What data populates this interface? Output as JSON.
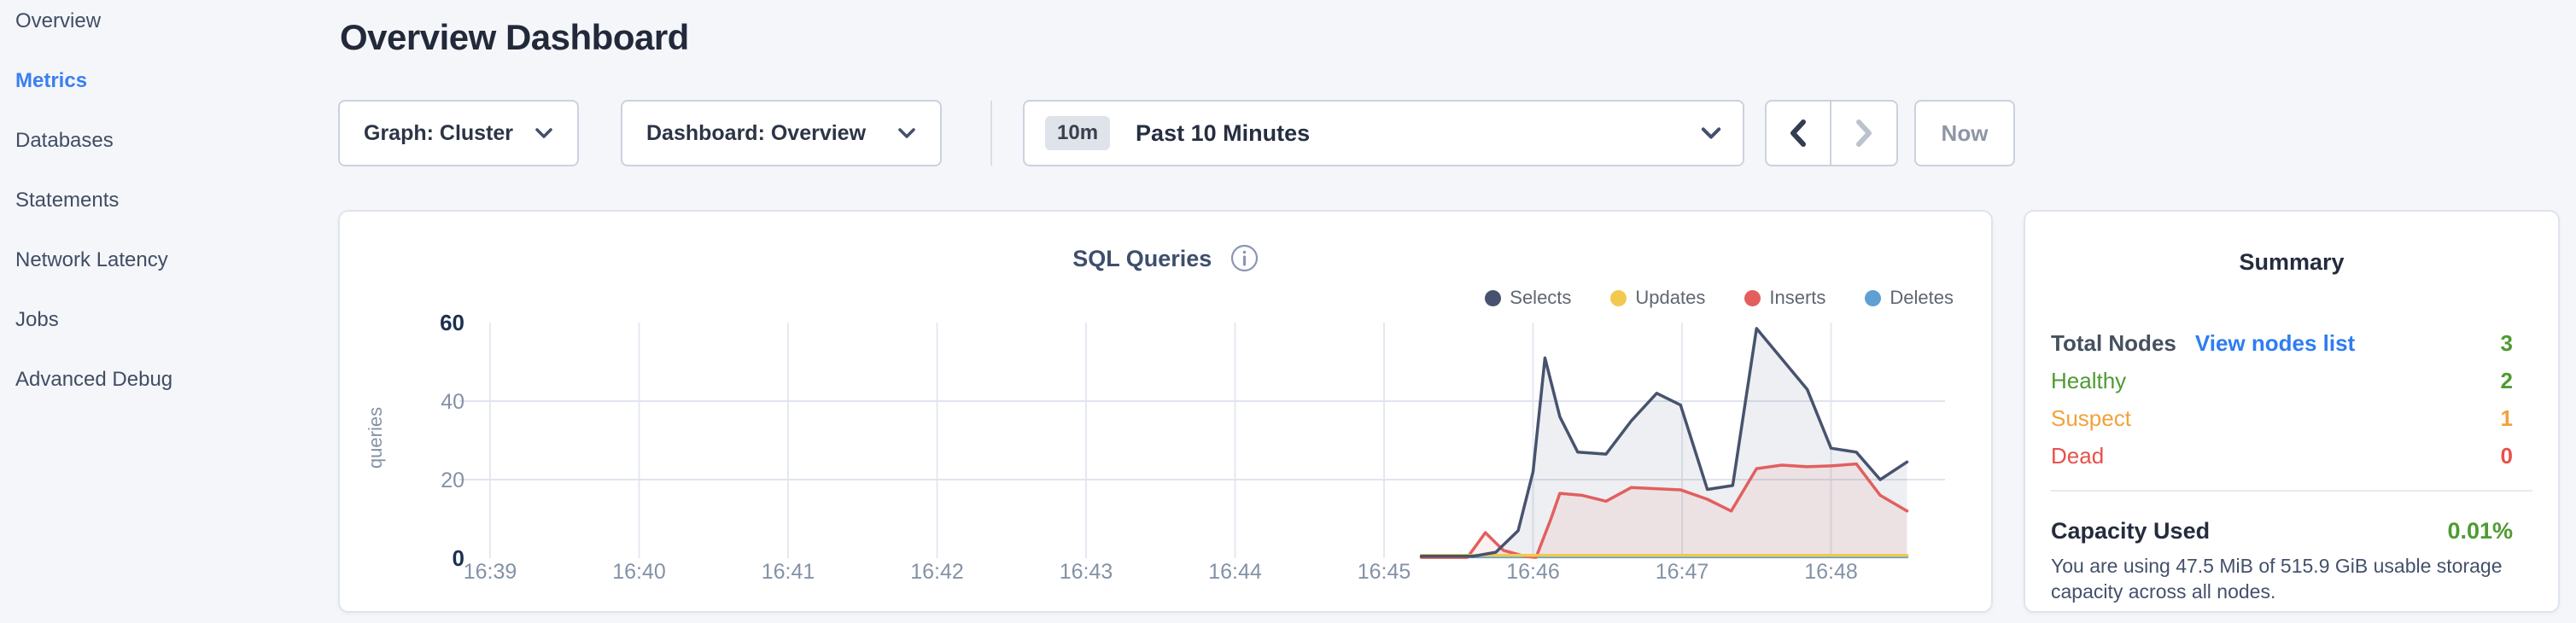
{
  "sidebar": {
    "items": [
      {
        "label": "Overview",
        "active": false
      },
      {
        "label": "Metrics",
        "active": true
      },
      {
        "label": "Databases",
        "active": false
      },
      {
        "label": "Statements",
        "active": false
      },
      {
        "label": "Network Latency",
        "active": false
      },
      {
        "label": "Jobs",
        "active": false
      },
      {
        "label": "Advanced Debug",
        "active": false
      }
    ]
  },
  "header": {
    "title": "Overview Dashboard"
  },
  "controls": {
    "graph_dropdown": "Graph: Cluster",
    "dashboard_dropdown": "Dashboard: Overview",
    "time_picker": {
      "badge": "10m",
      "label": "Past 10 Minutes"
    },
    "now_button": "Now"
  },
  "chart_data": {
    "type": "area",
    "title": "SQL Queries",
    "ylabel": "queries",
    "x_unit": "minutes after 16:39",
    "x_axis": {
      "tick_labels": [
        "16:39",
        "16:40",
        "16:41",
        "16:42",
        "16:43",
        "16:44",
        "16:45",
        "16:46",
        "16:47",
        "16:48"
      ],
      "minutes_per_tick": 1
    },
    "y_axis": {
      "ticks": [
        0,
        20,
        40,
        60
      ],
      "range": [
        0,
        60
      ]
    },
    "grid": "on",
    "legend_position": "top-right",
    "series": [
      {
        "name": "Selects",
        "color": "#47536e",
        "fill": "rgba(71,83,110,0.09)",
        "points": [
          [
            6.25,
            0.5
          ],
          [
            6.6,
            0.5
          ],
          [
            6.75,
            1.5
          ],
          [
            6.9,
            7
          ],
          [
            7.0,
            22
          ],
          [
            7.08,
            51
          ],
          [
            7.18,
            36
          ],
          [
            7.3,
            27
          ],
          [
            7.49,
            26.5
          ],
          [
            7.66,
            35
          ],
          [
            7.83,
            42
          ],
          [
            7.99,
            39
          ],
          [
            8.17,
            17.5
          ],
          [
            8.34,
            18.5
          ],
          [
            8.5,
            58.5
          ],
          [
            8.84,
            43
          ],
          [
            9.0,
            28
          ],
          [
            9.17,
            27
          ],
          [
            9.33,
            20
          ],
          [
            9.51,
            24.5
          ]
        ]
      },
      {
        "name": "Updates",
        "color": "#f2c94c",
        "fill": "none",
        "points": [
          [
            6.25,
            0.7
          ],
          [
            9.51,
            0.7
          ]
        ]
      },
      {
        "name": "Inserts",
        "color": "#e25f5e",
        "fill": "rgba(226,95,94,0.09)",
        "points": [
          [
            6.25,
            0.2
          ],
          [
            6.56,
            0.2
          ],
          [
            6.68,
            6.5
          ],
          [
            6.8,
            2
          ],
          [
            6.94,
            0.5
          ],
          [
            7.02,
            0.2
          ],
          [
            7.12,
            10
          ],
          [
            7.18,
            16.5
          ],
          [
            7.33,
            16
          ],
          [
            7.49,
            14.5
          ],
          [
            7.66,
            18
          ],
          [
            7.99,
            17.4
          ],
          [
            8.17,
            15
          ],
          [
            8.33,
            12
          ],
          [
            8.5,
            22.8
          ],
          [
            8.67,
            23.7
          ],
          [
            8.84,
            23.3
          ],
          [
            9.0,
            23.5
          ],
          [
            9.17,
            24
          ],
          [
            9.33,
            16
          ],
          [
            9.51,
            12
          ]
        ]
      },
      {
        "name": "Deletes",
        "color": "#5ea0d4",
        "fill": "none",
        "points": [
          [
            6.25,
            0.35
          ],
          [
            9.51,
            0.35
          ]
        ]
      }
    ]
  },
  "summary": {
    "title": "Summary",
    "rows": [
      {
        "label": "Total Nodes",
        "link": "View nodes list",
        "value": "3",
        "color": "green",
        "label_color": "dark",
        "strong": true
      },
      {
        "label": "Healthy",
        "value": "2",
        "color": "green",
        "label_color": "green",
        "strong": false
      },
      {
        "label": "Suspect",
        "value": "1",
        "color": "orange",
        "label_color": "orange",
        "strong": false
      },
      {
        "label": "Dead",
        "value": "0",
        "color": "red",
        "label_color": "red",
        "strong": false
      }
    ],
    "capacity": {
      "label": "Capacity Used",
      "value": "0.01%",
      "value_color": "green",
      "description": "You are using 47.5 MiB of 515.9 GiB usable storage capacity across all nodes."
    },
    "colors": {
      "green": "#4e9b32",
      "orange": "#f1a23c",
      "red": "#e8504a",
      "dark": "#46505e",
      "link": "#2e7df0"
    }
  }
}
